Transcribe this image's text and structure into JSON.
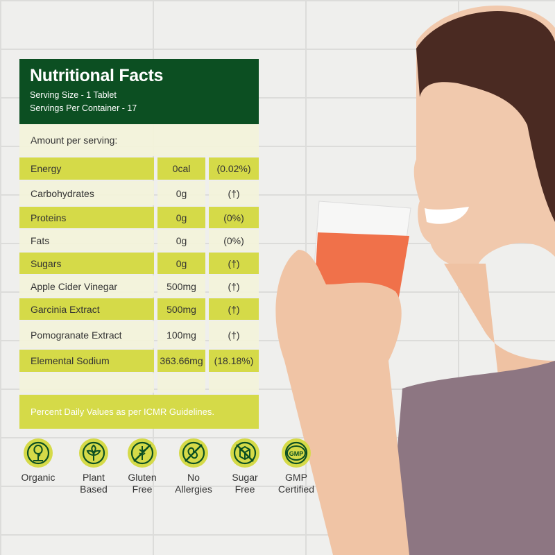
{
  "panel": {
    "title": "Nutritional Facts",
    "serving_size": "Serving Size - 1 Tablet",
    "servings_per_container": "Servings Per Container - 17",
    "amount_label": "Amount per serving:",
    "rows": [
      {
        "name": "Energy",
        "amount": "0cal",
        "dv": "(0.02%)"
      },
      {
        "name": "Carbohydrates",
        "amount": "0g",
        "dv": "(†)"
      },
      {
        "name": "Proteins",
        "amount": "0g",
        "dv": "(0%)"
      },
      {
        "name": "Fats",
        "amount": "0g",
        "dv": "(0%)"
      },
      {
        "name": "Sugars",
        "amount": "0g",
        "dv": "(†)"
      },
      {
        "name": "Apple Cider Vinegar",
        "amount": "500mg",
        "dv": "(†)"
      },
      {
        "name": "Garcinia Extract",
        "amount": "500mg",
        "dv": "(†)"
      },
      {
        "name": "Pomogranate Extract",
        "amount": "100mg",
        "dv": "(†)"
      },
      {
        "name": "Elemental Sodium",
        "amount": "363.66mg",
        "dv": "(18.18%)"
      }
    ],
    "footer": "Percent Daily Values as per ICMR Guidelines."
  },
  "badges": [
    {
      "icon": "tree-icon",
      "line1": "Organic",
      "line2": ""
    },
    {
      "icon": "leaf-icon",
      "line1": "Plant",
      "line2": "Based"
    },
    {
      "icon": "no-wheat-icon",
      "line1": "Gluten",
      "line2": "Free"
    },
    {
      "icon": "no-peanut-icon",
      "line1": "No",
      "line2": "Allergies"
    },
    {
      "icon": "no-sugar-cube-icon",
      "line1": "Sugar",
      "line2": "Free"
    },
    {
      "icon": "gmp-icon",
      "line1": "GMP",
      "line2": "Certified",
      "mark": "GMP"
    }
  ],
  "colors": {
    "dark_green": "#0c4f22",
    "lime": "#d5da48",
    "pale": "#f3f3da",
    "drink": "#f0714a"
  }
}
